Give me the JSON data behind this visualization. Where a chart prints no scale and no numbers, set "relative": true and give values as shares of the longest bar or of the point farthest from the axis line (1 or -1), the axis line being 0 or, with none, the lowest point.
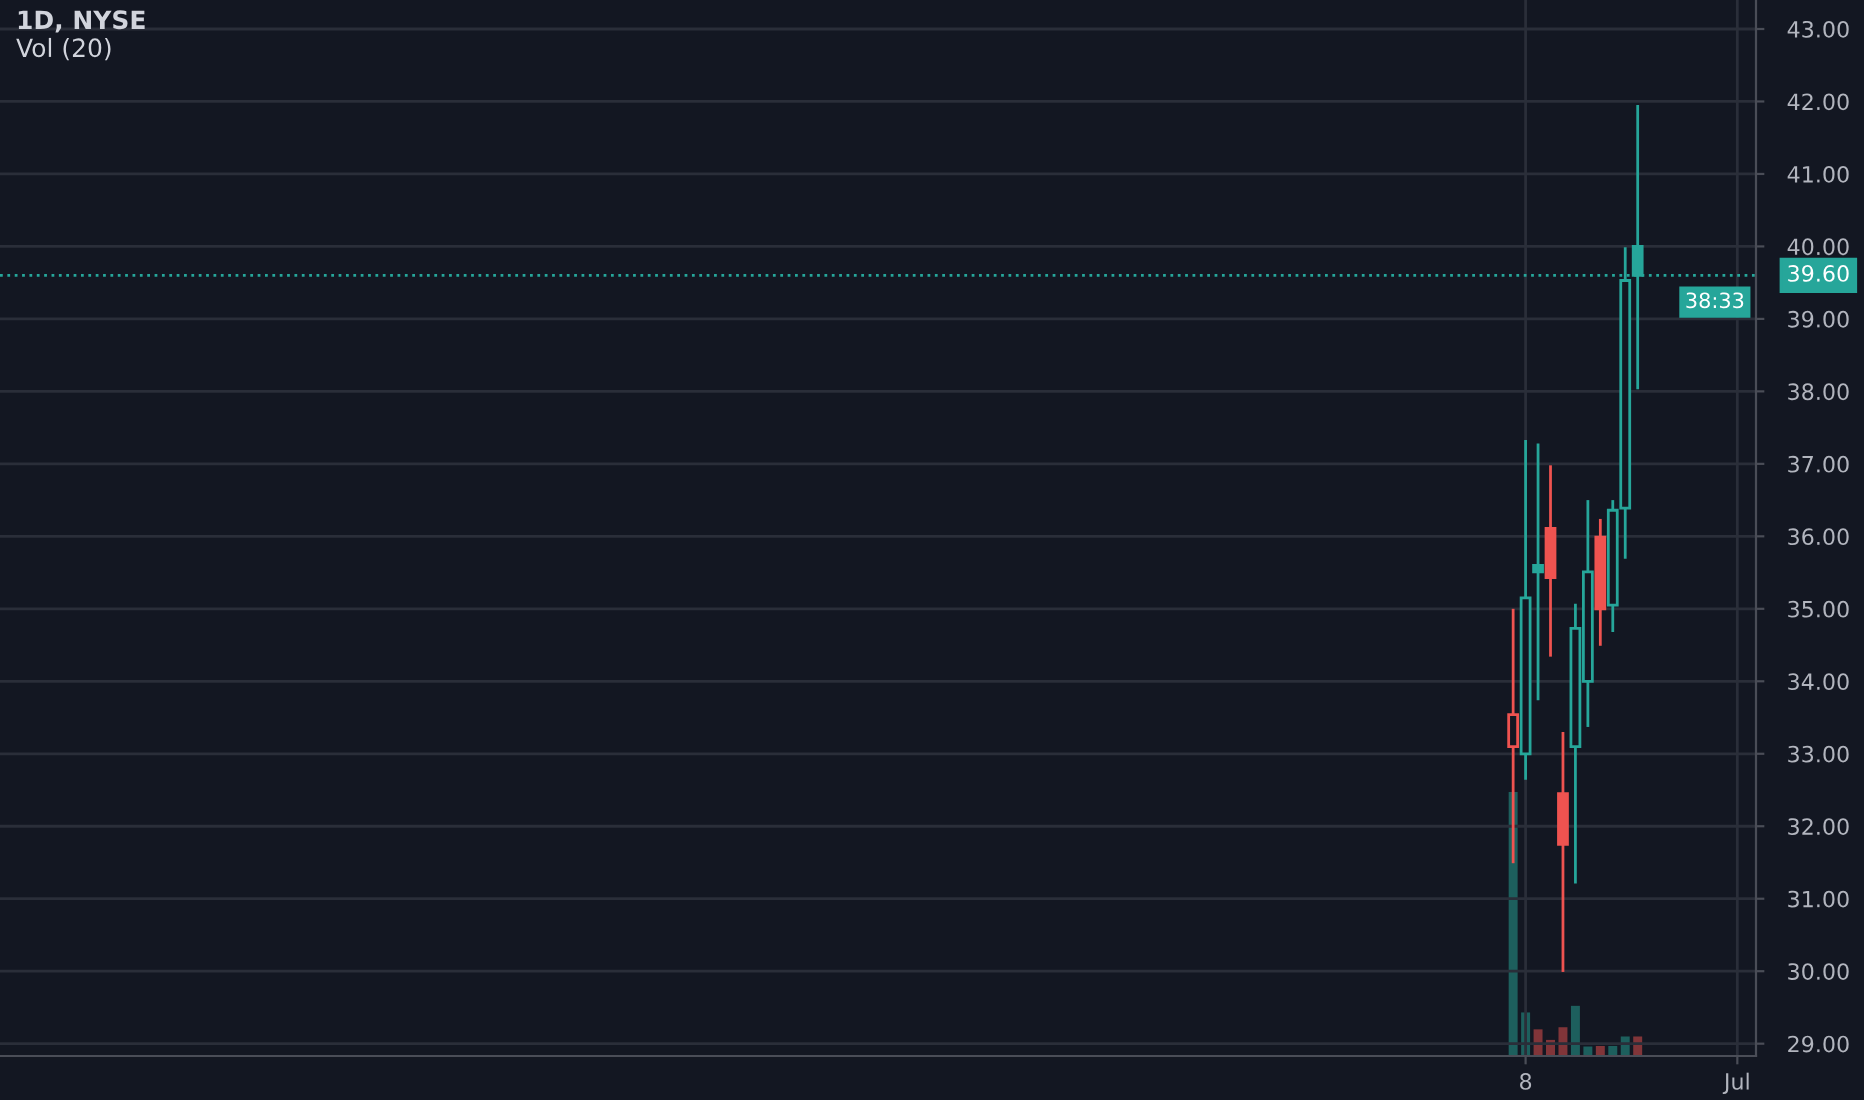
{
  "chart_data": [
    {
      "type": "candlestick",
      "title": "1D, NYSE",
      "categories": [
        null,
        null,
        null,
        null,
        null,
        null,
        null,
        null,
        null,
        null,
        null,
        null,
        null,
        null,
        null,
        null,
        null,
        null,
        null,
        null,
        null,
        null,
        null,
        null,
        null,
        null,
        null,
        null,
        null,
        null,
        null,
        null,
        null,
        null,
        null,
        null,
        null,
        null,
        null,
        null,
        null,
        null,
        null,
        null,
        null,
        null,
        null,
        null,
        null,
        null,
        null,
        null,
        null,
        null,
        null,
        null,
        null,
        null,
        null,
        null,
        null,
        null,
        null,
        null,
        null,
        null,
        null,
        null,
        null,
        null,
        null,
        null,
        null,
        null,
        null,
        null,
        null,
        null,
        null,
        null,
        null,
        null,
        null,
        null,
        null,
        null,
        null,
        null,
        null,
        null,
        null,
        null,
        null,
        null,
        null,
        null,
        null,
        null,
        null,
        null,
        null,
        null,
        null,
        null,
        null,
        null,
        null,
        null,
        null,
        null,
        null,
        null,
        null,
        null,
        null,
        null,
        null,
        null,
        null,
        null,
        null,
        null,
        "8",
        null,
        null,
        null,
        null,
        null,
        null,
        null,
        null,
        null,
        null,
        null,
        null,
        null,
        null,
        null,
        null,
        "Jul",
        null
      ],
      "ohlc": [
        null,
        null,
        null,
        null,
        null,
        null,
        null,
        null,
        null,
        null,
        null,
        null,
        null,
        null,
        null,
        null,
        null,
        null,
        null,
        null,
        null,
        null,
        null,
        null,
        null,
        null,
        null,
        null,
        null,
        null,
        null,
        null,
        null,
        null,
        null,
        null,
        null,
        null,
        null,
        null,
        null,
        null,
        null,
        null,
        null,
        null,
        null,
        null,
        null,
        null,
        null,
        null,
        null,
        null,
        null,
        null,
        null,
        null,
        null,
        null,
        null,
        null,
        null,
        null,
        null,
        null,
        null,
        null,
        null,
        null,
        null,
        null,
        null,
        null,
        null,
        null,
        null,
        null,
        null,
        null,
        null,
        null,
        null,
        null,
        null,
        null,
        null,
        null,
        null,
        null,
        null,
        null,
        null,
        null,
        null,
        null,
        null,
        null,
        null,
        null,
        null,
        null,
        null,
        null,
        null,
        null,
        null,
        null,
        null,
        null,
        null,
        null,
        null,
        null,
        null,
        null,
        null,
        null,
        null,
        null,
        null,
        [
          33.1,
          35.0,
          31.49,
          33.54
        ],
        [
          33.0,
          37.33,
          32.64,
          35.15
        ],
        [
          35.6,
          37.28,
          33.74,
          35.51
        ],
        [
          36.11,
          36.98,
          34.34,
          35.43
        ],
        [
          32.45,
          33.3,
          29.99,
          31.75
        ],
        [
          33.1,
          35.07,
          31.21,
          34.73
        ],
        [
          34.0,
          36.5,
          33.37,
          35.51
        ],
        [
          35.99,
          36.24,
          34.49,
          35.0
        ],
        [
          35.05,
          36.5,
          34.68,
          36.36
        ],
        [
          36.39,
          39.99,
          35.69,
          39.53
        ],
        [
          40.0,
          41.95,
          38.03,
          39.6
        ],
        null,
        null,
        null,
        null,
        null,
        null,
        null,
        null,
        null
      ],
      "colors": [
        null,
        null,
        null,
        null,
        null,
        null,
        null,
        null,
        null,
        null,
        null,
        null,
        null,
        null,
        null,
        null,
        null,
        null,
        null,
        null,
        null,
        null,
        null,
        null,
        null,
        null,
        null,
        null,
        null,
        null,
        null,
        null,
        null,
        null,
        null,
        null,
        null,
        null,
        null,
        null,
        null,
        null,
        null,
        null,
        null,
        null,
        null,
        null,
        null,
        null,
        null,
        null,
        null,
        null,
        null,
        null,
        null,
        null,
        null,
        null,
        null,
        null,
        null,
        null,
        null,
        null,
        null,
        null,
        null,
        null,
        null,
        null,
        null,
        null,
        null,
        null,
        null,
        null,
        null,
        null,
        null,
        null,
        null,
        null,
        null,
        null,
        null,
        null,
        null,
        null,
        null,
        null,
        null,
        null,
        null,
        null,
        null,
        null,
        null,
        null,
        null,
        null,
        null,
        null,
        null,
        null,
        null,
        null,
        null,
        null,
        null,
        null,
        null,
        null,
        null,
        null,
        null,
        null,
        null,
        null,
        null,
        "#ef5350",
        "#26a69a",
        "#26a69a",
        "#ef5350",
        "#ef5350",
        "#26a69a",
        "#26a69a",
        "#ef5350",
        "#26a69a",
        "#26a69a",
        "#26a69a",
        null,
        null,
        null,
        null,
        null,
        null,
        null,
        null,
        null
      ],
      "ylim": [
        28.83,
        43.4
      ],
      "yticks": [
        {
          "value": 29,
          "label": "29.00"
        },
        {
          "value": 30,
          "label": "30.00"
        },
        {
          "value": 31,
          "label": "31.00"
        },
        {
          "value": 32,
          "label": "32.00"
        },
        {
          "value": 33,
          "label": "33.00"
        },
        {
          "value": 34,
          "label": "34.00"
        },
        {
          "value": 35,
          "label": "35.00"
        },
        {
          "value": 36,
          "label": "36.00"
        },
        {
          "value": 37,
          "label": "37.00"
        },
        {
          "value": 38,
          "label": "38.00"
        },
        {
          "value": 39,
          "label": "39.00"
        },
        {
          "value": 40,
          "label": "40.00"
        },
        {
          "value": 41,
          "label": "41.00"
        },
        {
          "value": 42,
          "label": "42.00"
        },
        {
          "value": 43,
          "label": "43.00"
        }
      ],
      "grid": true,
      "ref_lines": [
        {
          "axis": "y",
          "value": 39.6,
          "label": "39.60",
          "color": "#26a69a",
          "line_style": "dotted"
        }
      ],
      "annotations": [
        "38:33"
      ]
    },
    {
      "type": "bar",
      "title": "Vol (20)",
      "relative": true,
      "categories": [
        null,
        null,
        null,
        null,
        null,
        null,
        null,
        null,
        null,
        null,
        null,
        null,
        null,
        null,
        null,
        null,
        null,
        null,
        null,
        null,
        null,
        null,
        null,
        null,
        null,
        null,
        null,
        null,
        null,
        null,
        null,
        null,
        null,
        null,
        null,
        null,
        null,
        null,
        null,
        null,
        null,
        null,
        null,
        null,
        null,
        null,
        null,
        null,
        null,
        null,
        null,
        null,
        null,
        null,
        null,
        null,
        null,
        null,
        null,
        null,
        null,
        null,
        null,
        null,
        null,
        null,
        null,
        null,
        null,
        null,
        null,
        null,
        null,
        null,
        null,
        null,
        null,
        null,
        null,
        null,
        null,
        null,
        null,
        null,
        null,
        null,
        null,
        null,
        null,
        null,
        null,
        null,
        null,
        null,
        null,
        null,
        null,
        null,
        null,
        null,
        null,
        null,
        null,
        null,
        null,
        null,
        null,
        null,
        null,
        null,
        null,
        null,
        null,
        null,
        null,
        null,
        null,
        null,
        null,
        null,
        null,
        null,
        null,
        null,
        null,
        null,
        null,
        null,
        null,
        null,
        null,
        null,
        null,
        null,
        null,
        null,
        null,
        null,
        null,
        null,
        null
      ],
      "values": [
        null,
        null,
        null,
        null,
        null,
        null,
        null,
        null,
        null,
        null,
        null,
        null,
        null,
        null,
        null,
        null,
        null,
        null,
        null,
        null,
        null,
        null,
        null,
        null,
        null,
        null,
        null,
        null,
        null,
        null,
        null,
        null,
        null,
        null,
        null,
        null,
        null,
        null,
        null,
        null,
        null,
        null,
        null,
        null,
        null,
        null,
        null,
        null,
        null,
        null,
        null,
        null,
        null,
        null,
        null,
        null,
        null,
        null,
        null,
        null,
        null,
        null,
        null,
        null,
        null,
        null,
        null,
        null,
        null,
        null,
        null,
        null,
        null,
        null,
        null,
        null,
        null,
        null,
        null,
        null,
        null,
        null,
        null,
        null,
        null,
        null,
        null,
        null,
        null,
        null,
        null,
        null,
        null,
        null,
        null,
        null,
        null,
        null,
        null,
        null,
        null,
        null,
        null,
        null,
        null,
        null,
        null,
        null,
        null,
        null,
        null,
        null,
        null,
        null,
        null,
        null,
        null,
        null,
        null,
        null,
        null,
        1,
        0.165,
        0.101,
        0.061,
        0.109,
        0.19,
        0.036,
        0.038,
        0.038,
        0.074,
        0.074,
        null,
        null,
        null,
        null,
        null,
        null,
        null,
        null,
        null
      ],
      "colors": [
        null,
        null,
        null,
        null,
        null,
        null,
        null,
        null,
        null,
        null,
        null,
        null,
        null,
        null,
        null,
        null,
        null,
        null,
        null,
        null,
        null,
        null,
        null,
        null,
        null,
        null,
        null,
        null,
        null,
        null,
        null,
        null,
        null,
        null,
        null,
        null,
        null,
        null,
        null,
        null,
        null,
        null,
        null,
        null,
        null,
        null,
        null,
        null,
        null,
        null,
        null,
        null,
        null,
        null,
        null,
        null,
        null,
        null,
        null,
        null,
        null,
        null,
        null,
        null,
        null,
        null,
        null,
        null,
        null,
        null,
        null,
        null,
        null,
        null,
        null,
        null,
        null,
        null,
        null,
        null,
        null,
        null,
        null,
        null,
        null,
        null,
        null,
        null,
        null,
        null,
        null,
        null,
        null,
        null,
        null,
        null,
        null,
        null,
        null,
        null,
        null,
        null,
        null,
        null,
        null,
        null,
        null,
        null,
        null,
        null,
        null,
        null,
        null,
        null,
        null,
        null,
        null,
        null,
        null,
        null,
        null,
        "#1d5f5d",
        "#1d5f5d",
        "#813539",
        "#813539",
        "#813539",
        "#1d5f5d",
        "#1d5f5d",
        "#813539",
        "#1d5f5d",
        "#1d5f5d",
        "#813539",
        null,
        null,
        null,
        null,
        null,
        null,
        null,
        null,
        null
      ]
    }
  ]
}
